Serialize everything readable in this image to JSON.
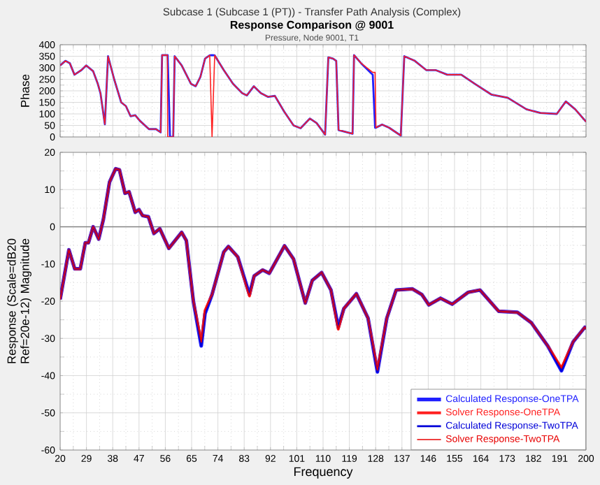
{
  "chart_data": [
    {
      "type": "line",
      "title": "Response Comparison @ 9001",
      "subtitle": "Pressure, Node 9001, T1",
      "annotations": [
        "Subcase 1 (Subcase 1 (PT))  -  Transfer Path Analysis (Complex)"
      ],
      "ylabel": "Phase",
      "xlim": [
        20,
        200
      ],
      "ylim": [
        0,
        400
      ],
      "xticks": [
        20,
        29,
        38,
        47,
        56,
        65,
        74,
        83,
        92,
        101,
        110,
        119,
        128,
        137,
        146,
        155,
        164,
        173,
        182,
        191,
        200
      ],
      "yticks": [
        0,
        50,
        100,
        150,
        200,
        250,
        300,
        350,
        400
      ],
      "grid": true,
      "tick_labels": "y",
      "series": [
        {
          "color": "#2020ff",
          "x": [
            20,
            21.8,
            23.3,
            24.9,
            27.3,
            28.9,
            31.3,
            32.9,
            33.8,
            35.3,
            36.4,
            38.5,
            40.9,
            42.5,
            44.1,
            45.7,
            47.3,
            50.4,
            52.8,
            54.4,
            54.9,
            56.7,
            56.8,
            57.6,
            58.7,
            59.2,
            61.6,
            64.8,
            66.4,
            68,
            69.6,
            71.2,
            72,
            72.9,
            76,
            79.2,
            82.3,
            83.9,
            86.3,
            88.7,
            91.1,
            93.5,
            96.7,
            99.9,
            102.3,
            105.5,
            107.8,
            110.7,
            111.8,
            113.4,
            114.5,
            115.3,
            120.1,
            120.6,
            123,
            127,
            127.8,
            128.1,
            130.2,
            132.6,
            136.6,
            137.8,
            141.4,
            145.3,
            148.5,
            152.5,
            157.3,
            162,
            167.6,
            173.2,
            179.6,
            184.4,
            190,
            193.1,
            196.3,
            200
          ],
          "values": [
            310,
            330,
            320,
            270,
            290,
            310,
            285,
            230,
            190,
            55,
            350,
            250,
            150,
            134,
            90,
            94,
            70,
            34,
            34,
            20,
            355,
            355,
            355,
            0,
            0,
            350,
            310,
            230,
            220,
            260,
            340,
            354,
            355,
            354,
            290,
            230,
            190,
            180,
            220,
            190,
            174,
            178,
            110,
            50,
            38,
            80,
            60,
            10,
            345,
            340,
            330,
            30,
            14,
            355,
            320,
            270,
            40,
            40,
            54,
            40,
            6,
            350,
            330,
            290,
            290,
            270,
            270,
            230,
            184,
            170,
            120,
            104,
            100,
            154,
            120,
            66
          ]
        },
        {
          "color": "#ff2020",
          "x": [
            20,
            21.8,
            23.3,
            24.9,
            27.3,
            28.9,
            31.3,
            32.9,
            33.8,
            35.3,
            36.4,
            38.5,
            40.9,
            42.5,
            44.1,
            45.7,
            47.3,
            50.4,
            52.8,
            54.4,
            54.9,
            56.7,
            56.8,
            57.6,
            58.7,
            59.2,
            61.6,
            64.8,
            66.4,
            68,
            69.6,
            71.2,
            72,
            72.9,
            76,
            79.2,
            82.3,
            83.9,
            86.3,
            88.7,
            91.1,
            93.5,
            96.7,
            99.9,
            102.3,
            105.5,
            107.8,
            110.7,
            111.8,
            113.4,
            114.5,
            115.3,
            120.1,
            120.6,
            123,
            127,
            127.8,
            128.1,
            130.2,
            132.6,
            136.6,
            137.8,
            141.4,
            145.3,
            148.5,
            152.5,
            157.3,
            162,
            167.6,
            173.2,
            179.6,
            184.4,
            190,
            193.1,
            196.3,
            200
          ],
          "values": [
            310,
            330,
            320,
            270,
            290,
            310,
            285,
            230,
            190,
            55,
            350,
            250,
            150,
            134,
            90,
            94,
            70,
            34,
            34,
            20,
            355,
            355,
            0,
            0,
            0,
            350,
            310,
            230,
            220,
            260,
            340,
            354,
            0,
            354,
            290,
            230,
            190,
            180,
            220,
            190,
            174,
            178,
            110,
            50,
            38,
            80,
            60,
            10,
            345,
            340,
            330,
            30,
            14,
            355,
            320,
            280,
            280,
            40,
            54,
            40,
            6,
            350,
            330,
            290,
            290,
            270,
            270,
            230,
            184,
            170,
            120,
            104,
            100,
            154,
            120,
            66
          ]
        }
      ]
    },
    {
      "type": "line",
      "ylabel": "Response (Scale=dB20 Ref=20e-12) Magnitude",
      "xlabel": "Frequency",
      "xlim": [
        20,
        200
      ],
      "ylim": [
        -60,
        20
      ],
      "xticks": [
        20,
        29,
        38,
        47,
        56,
        65,
        74,
        83,
        92,
        101,
        110,
        119,
        128,
        137,
        146,
        155,
        164,
        173,
        182,
        191,
        200
      ],
      "yticks": [
        -60,
        -50,
        -40,
        -30,
        -20,
        -10,
        0,
        10,
        20
      ],
      "grid": true,
      "legend": "bottom right",
      "ref_lines": [
        {
          "axis": "y",
          "value": 0,
          "color": "#808080"
        }
      ],
      "series": [
        {
          "name": "Calculated Response-OneTPA",
          "color": "#2020ff",
          "x": [
            20,
            23,
            25,
            26.9,
            28.6,
            29.7,
            31.3,
            33.2,
            34.8,
            36.9,
            39,
            40.3,
            42.2,
            43.6,
            45.7,
            47,
            48.2,
            50.2,
            52.1,
            54.1,
            57.2,
            61.6,
            63.2,
            65.6,
            68.3,
            69.6,
            72,
            76,
            77.6,
            80.8,
            84.8,
            86.4,
            89.3,
            91.6,
            96.8,
            99.9,
            103.9,
            106.3,
            109.5,
            112.7,
            115.2,
            117.1,
            121.4,
            125.4,
            128.6,
            131.8,
            135,
            140.6,
            143.8,
            146.2,
            150.2,
            154.2,
            159.7,
            163.7,
            170.1,
            176.5,
            181.3,
            186.9,
            191.6,
            195.6,
            199.6,
            200
          ],
          "values": [
            -19.5,
            -6.2,
            -11.3,
            -11.3,
            -4.3,
            -4.3,
            0,
            -3.3,
            2,
            12,
            15.6,
            15.3,
            9,
            9.4,
            3.9,
            4.6,
            3,
            2.7,
            -1.8,
            -0.5,
            -5.8,
            -1.5,
            -3.7,
            -20,
            -32,
            -23.3,
            -18.2,
            -6.8,
            -5.3,
            -8.1,
            -18.2,
            -13.2,
            -11.6,
            -12.5,
            -5.1,
            -8.7,
            -20.5,
            -14.4,
            -12.3,
            -17,
            -27,
            -22,
            -18,
            -24.6,
            -39,
            -24.6,
            -17,
            -16.7,
            -18.2,
            -21,
            -19.2,
            -20.8,
            -17.6,
            -17,
            -22.7,
            -23,
            -25.8,
            -32,
            -38.7,
            -30.9,
            -27,
            -27.5
          ]
        },
        {
          "name": "Solver Response-OneTPA",
          "color": "#ff2020",
          "x": [
            20,
            23,
            25,
            26.9,
            28.6,
            29.7,
            31.3,
            33.2,
            34.8,
            36.9,
            39,
            40.3,
            42.2,
            43.6,
            45.7,
            47,
            48.2,
            50.2,
            52.1,
            54.1,
            57.2,
            61.6,
            63.2,
            65.6,
            68.3,
            69.6,
            72,
            76,
            77.6,
            80.8,
            84.8,
            86.4,
            89.3,
            91.6,
            96.8,
            99.9,
            103.9,
            106.3,
            109.5,
            112.7,
            115.2,
            117.1,
            121.4,
            125.4,
            128.6,
            131.8,
            135,
            140.6,
            143.8,
            146.2,
            150.2,
            154.2,
            159.7,
            163.7,
            170.1,
            176.5,
            181.3,
            186.9,
            191.6,
            195.6,
            199.6,
            200
          ],
          "values": [
            -19.5,
            -6.2,
            -11.3,
            -11.3,
            -4.3,
            -4.3,
            0,
            -3.3,
            2,
            12,
            15.6,
            15.3,
            9,
            9.4,
            3.9,
            4.6,
            3,
            2.7,
            -1.8,
            -0.5,
            -5.8,
            -1.5,
            -3.7,
            -20,
            -31,
            -22.5,
            -18.2,
            -6.8,
            -5.3,
            -8.1,
            -18.6,
            -13.2,
            -11.6,
            -12.5,
            -5.1,
            -8.7,
            -20.5,
            -14.4,
            -12.3,
            -17,
            -27.5,
            -22,
            -18,
            -24.6,
            -38.5,
            -24.6,
            -17,
            -16.7,
            -18.2,
            -21,
            -19.2,
            -20.8,
            -17.6,
            -17,
            -22.7,
            -23,
            -25.8,
            -32,
            -38,
            -30.9,
            -27,
            -27.5
          ]
        },
        {
          "name": "Calculated Response-TwoTPA",
          "color": "#0000d8",
          "x": [
            20,
            23,
            25,
            26.9,
            28.6,
            29.7,
            31.3,
            33.2,
            34.8,
            36.9,
            39,
            40.3,
            42.2,
            43.6,
            45.7,
            47,
            48.2,
            50.2,
            52.1,
            54.1,
            57.2,
            61.6,
            63.2,
            65.6,
            68.3,
            69.6,
            72,
            76,
            77.6,
            80.8,
            84.8,
            86.4,
            89.3,
            91.6,
            96.8,
            99.9,
            103.9,
            106.3,
            109.5,
            112.7,
            115.2,
            117.1,
            121.4,
            125.4,
            128.6,
            131.8,
            135,
            140.6,
            143.8,
            146.2,
            150.2,
            154.2,
            159.7,
            163.7,
            170.1,
            176.5,
            181.3,
            186.9,
            191.6,
            195.6,
            199.6,
            200
          ],
          "values": [
            -19.5,
            -6.2,
            -11.3,
            -11.3,
            -4.3,
            -4.3,
            0,
            -3.3,
            2,
            12,
            15.6,
            15.3,
            9,
            9.4,
            3.9,
            4.6,
            3,
            2.7,
            -1.8,
            -0.5,
            -5.8,
            -1.5,
            -3.7,
            -20,
            -32,
            -23.3,
            -18.2,
            -6.8,
            -5.3,
            -8.1,
            -18.2,
            -13.2,
            -11.6,
            -12.5,
            -5.1,
            -8.7,
            -20.5,
            -14.4,
            -12.3,
            -17,
            -27,
            -22,
            -18,
            -24.6,
            -39,
            -24.6,
            -17,
            -16.7,
            -18.2,
            -21,
            -19.2,
            -20.8,
            -17.6,
            -17,
            -22.7,
            -23,
            -25.8,
            -32,
            -38.7,
            -30.9,
            -27,
            -27.5
          ]
        },
        {
          "name": "Solver Response-TwoTPA",
          "color": "#e80000",
          "x": [
            20,
            23,
            25,
            26.9,
            28.6,
            29.7,
            31.3,
            33.2,
            34.8,
            36.9,
            39,
            40.3,
            42.2,
            43.6,
            45.7,
            47,
            48.2,
            50.2,
            52.1,
            54.1,
            57.2,
            61.6,
            63.2,
            65.6,
            68.3,
            69.6,
            72,
            76,
            77.6,
            80.8,
            84.8,
            86.4,
            89.3,
            91.6,
            96.8,
            99.9,
            103.9,
            106.3,
            109.5,
            112.7,
            115.2,
            117.1,
            121.4,
            125.4,
            128.6,
            131.8,
            135,
            140.6,
            143.8,
            146.2,
            150.2,
            154.2,
            159.7,
            163.7,
            170.1,
            176.5,
            181.3,
            186.9,
            191.6,
            195.6,
            199.6,
            200
          ],
          "values": [
            -19.5,
            -6.2,
            -11.3,
            -11.3,
            -4.3,
            -4.3,
            0,
            -3.3,
            2,
            12,
            15.6,
            15.3,
            9,
            9.4,
            3.9,
            4.6,
            3,
            2.7,
            -1.8,
            -0.5,
            -5.8,
            -1.5,
            -3.7,
            -20,
            -31,
            -22.5,
            -18.2,
            -6.8,
            -5.3,
            -8.1,
            -18.6,
            -13.2,
            -11.6,
            -12.5,
            -5.1,
            -8.7,
            -20.5,
            -14.4,
            -12.3,
            -17,
            -27.5,
            -22,
            -18,
            -24.6,
            -38.5,
            -24.6,
            -17,
            -16.7,
            -18.2,
            -21,
            -19.2,
            -20.8,
            -17.6,
            -17,
            -22.7,
            -23,
            -25.8,
            -32,
            -38,
            -30.9,
            -27,
            -27.5
          ]
        }
      ]
    }
  ]
}
